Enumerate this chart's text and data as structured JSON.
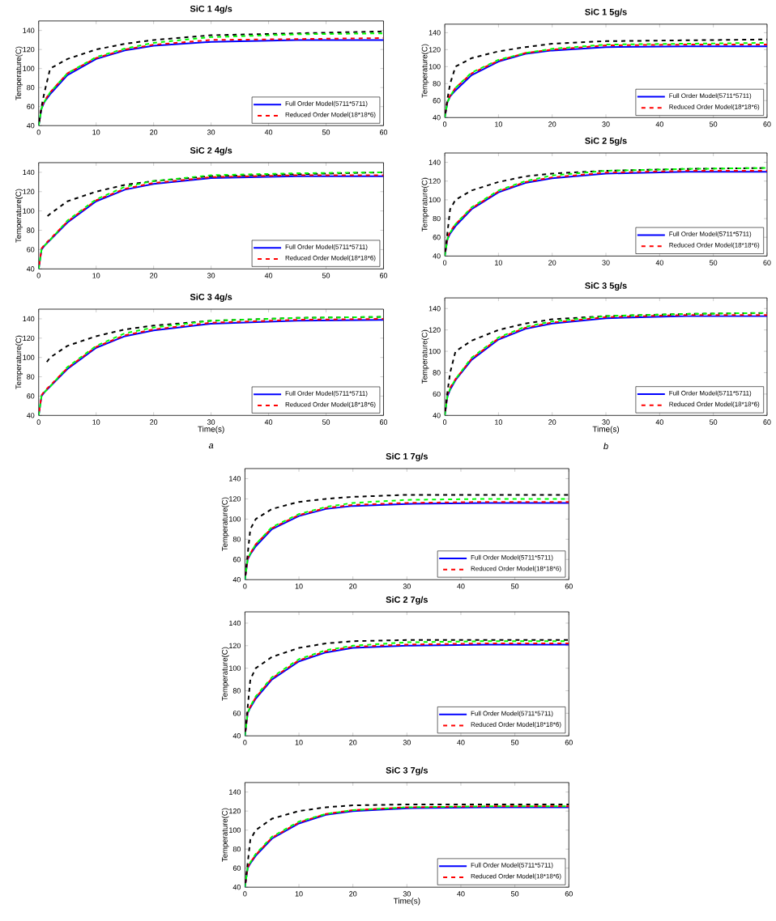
{
  "chart_data": [
    {
      "type": "line",
      "title": "SiC 1 4g/s",
      "ylabel": "Temperature(C)",
      "x": [
        0,
        0.5,
        1,
        2,
        5,
        10,
        15,
        20,
        30,
        45,
        60
      ],
      "xlim": [
        0,
        60
      ],
      "ylim": [
        40,
        150
      ],
      "xticks": [
        0,
        10,
        20,
        30,
        40,
        50,
        60
      ],
      "yticks": [
        40,
        60,
        80,
        100,
        120,
        140
      ],
      "legend": "bottom right",
      "series": [
        {
          "color": "#00ff00",
          "line_style": "dashed",
          "values": [
            40,
            58,
            65,
            75,
            95,
            112,
            121,
            127,
            133,
            136,
            137
          ]
        },
        {
          "color": "#000000",
          "line_style": "dashed",
          "values": [
            40,
            60,
            75,
            100,
            110,
            120,
            126,
            130,
            135,
            137,
            139
          ]
        },
        {
          "name": "Full Order Model(5711*5711)",
          "color": "#0000ff",
          "line_style": "solid",
          "values": [
            40,
            58,
            65,
            73,
            93,
            110,
            119,
            124,
            128,
            130,
            130
          ]
        },
        {
          "name": "Reduced Order Model(18*18*6)",
          "color": "#ff0000",
          "line_style": "dashed",
          "values": [
            40,
            60,
            66,
            75,
            95,
            111,
            120,
            125,
            130,
            131,
            132
          ]
        }
      ]
    },
    {
      "type": "line",
      "title": "SiC 1 5g/s",
      "ylabel": "Temperature(C)",
      "x": [
        0,
        0.5,
        1,
        2,
        5,
        10,
        15,
        20,
        30,
        45,
        60
      ],
      "xlim": [
        0,
        60
      ],
      "ylim": [
        40,
        150
      ],
      "xticks": [
        0,
        10,
        20,
        30,
        40,
        50,
        60
      ],
      "yticks": [
        40,
        60,
        80,
        100,
        120,
        140
      ],
      "legend": "bottom right",
      "series": [
        {
          "color": "#00ff00",
          "line_style": "dashed",
          "values": [
            40,
            58,
            65,
            75,
            93,
            108,
            116,
            121,
            126,
            127,
            128
          ]
        },
        {
          "color": "#000000",
          "line_style": "dashed",
          "values": [
            40,
            62,
            80,
            100,
            110,
            118,
            123,
            127,
            130,
            131,
            132
          ]
        },
        {
          "name": "Full Order Model(5711*5711)",
          "color": "#0000ff",
          "line_style": "solid",
          "values": [
            40,
            58,
            65,
            72,
            90,
            106,
            115,
            119,
            123,
            124,
            124
          ]
        },
        {
          "name": "Reduced Order Model(18*18*6)",
          "color": "#ff0000",
          "line_style": "dashed",
          "values": [
            40,
            60,
            66,
            75,
            92,
            107,
            116,
            120,
            125,
            126,
            126
          ]
        }
      ]
    },
    {
      "type": "line",
      "title": "SiC 2 4g/s",
      "ylabel": "Temperature(C)",
      "x": [
        0,
        0.5,
        1,
        2,
        5,
        10,
        15,
        20,
        30,
        45,
        60
      ],
      "xlim": [
        0,
        60
      ],
      "ylim": [
        40,
        150
      ],
      "xticks": [
        0,
        10,
        20,
        30,
        40,
        50,
        60
      ],
      "yticks": [
        40,
        60,
        80,
        100,
        120,
        140
      ],
      "legend": "bottom right",
      "series": [
        {
          "color": "#00ff00",
          "line_style": "dashed",
          "values": [
            40,
            60,
            64,
            70,
            90,
            112,
            125,
            131,
            137,
            139,
            140
          ]
        },
        {
          "color": "#000000",
          "line_style": "dashed",
          "values": [
            null,
            null,
            92,
            97,
            110,
            120,
            127,
            131,
            136,
            138,
            140
          ]
        },
        {
          "name": "Full Order Model(5711*5711)",
          "color": "#0000ff",
          "line_style": "solid",
          "values": [
            40,
            60,
            64,
            70,
            88,
            110,
            122,
            128,
            134,
            136,
            136
          ]
        },
        {
          "name": "Reduced Order Model(18*18*6)",
          "color": "#ff0000",
          "line_style": "dashed",
          "values": [
            40,
            61,
            65,
            71,
            89,
            111,
            123,
            129,
            135,
            137,
            137
          ]
        }
      ]
    },
    {
      "type": "line",
      "title": "SiC 2 5g/s",
      "ylabel": "Temperature(C)",
      "x": [
        0,
        0.5,
        1,
        2,
        5,
        10,
        15,
        20,
        30,
        45,
        60
      ],
      "xlim": [
        0,
        60
      ],
      "ylim": [
        40,
        150
      ],
      "xticks": [
        0,
        10,
        20,
        30,
        40,
        50,
        60
      ],
      "yticks": [
        40,
        60,
        80,
        100,
        120,
        140
      ],
      "legend": "bottom right",
      "series": [
        {
          "color": "#00ff00",
          "line_style": "dashed",
          "values": [
            40,
            58,
            65,
            74,
            92,
            110,
            120,
            126,
            131,
            133,
            134
          ]
        },
        {
          "color": "#000000",
          "line_style": "dashed",
          "values": [
            40,
            65,
            90,
            100,
            110,
            119,
            125,
            128,
            131,
            133,
            134
          ]
        },
        {
          "name": "Full Order Model(5711*5711)",
          "color": "#0000ff",
          "line_style": "solid",
          "values": [
            40,
            58,
            64,
            72,
            90,
            108,
            118,
            123,
            128,
            130,
            130
          ]
        },
        {
          "name": "Reduced Order Model(18*18*6)",
          "color": "#ff0000",
          "line_style": "dashed",
          "values": [
            40,
            60,
            66,
            74,
            91,
            109,
            119,
            124,
            129,
            131,
            131
          ]
        }
      ]
    },
    {
      "type": "line",
      "title": "SiC 3 4g/s",
      "xlabel": "Time(s)",
      "ylabel": "Temperature(C)",
      "annotations": [
        "a"
      ],
      "x": [
        0,
        0.5,
        1,
        2,
        5,
        10,
        15,
        20,
        30,
        45,
        60
      ],
      "xlim": [
        0,
        60
      ],
      "ylim": [
        40,
        150
      ],
      "xticks": [
        0,
        10,
        20,
        30,
        40,
        50,
        60
      ],
      "yticks": [
        40,
        60,
        80,
        100,
        120,
        140
      ],
      "legend": "bottom right",
      "series": [
        {
          "color": "#00ff00",
          "line_style": "dashed",
          "values": [
            40,
            60,
            64,
            70,
            90,
            112,
            125,
            131,
            138,
            141,
            142
          ]
        },
        {
          "color": "#000000",
          "line_style": "dashed",
          "values": [
            null,
            null,
            92,
            100,
            112,
            122,
            129,
            133,
            138,
            141,
            142
          ]
        },
        {
          "name": "Full Order Model(5711*5711)",
          "color": "#0000ff",
          "line_style": "solid",
          "values": [
            40,
            60,
            64,
            70,
            88,
            110,
            122,
            128,
            135,
            138,
            139
          ]
        },
        {
          "name": "Reduced Order Model(18*18*6)",
          "color": "#ff0000",
          "line_style": "dashed",
          "values": [
            40,
            61,
            65,
            71,
            89,
            111,
            123,
            129,
            136,
            139,
            140
          ]
        }
      ]
    },
    {
      "type": "line",
      "title": "SiC 3 5g/s",
      "xlabel": "Time(s)",
      "ylabel": "Temperature(C)",
      "annotations": [
        "b"
      ],
      "x": [
        0,
        0.5,
        1,
        2,
        5,
        10,
        15,
        20,
        30,
        45,
        60
      ],
      "xlim": [
        0,
        60
      ],
      "ylim": [
        40,
        150
      ],
      "xticks": [
        0,
        10,
        20,
        30,
        40,
        50,
        60
      ],
      "yticks": [
        40,
        60,
        80,
        100,
        120,
        140
      ],
      "legend": "bottom right",
      "series": [
        {
          "color": "#00ff00",
          "line_style": "dashed",
          "values": [
            40,
            58,
            65,
            74,
            94,
            113,
            123,
            128,
            133,
            135,
            136
          ]
        },
        {
          "color": "#000000",
          "line_style": "dashed",
          "values": [
            40,
            62,
            80,
            100,
            110,
            120,
            126,
            130,
            133,
            135,
            136
          ]
        },
        {
          "name": "Full Order Model(5711*5711)",
          "color": "#0000ff",
          "line_style": "solid",
          "values": [
            40,
            58,
            64,
            73,
            92,
            111,
            121,
            126,
            131,
            133,
            133
          ]
        },
        {
          "name": "Reduced Order Model(18*18*6)",
          "color": "#ff0000",
          "line_style": "dashed",
          "values": [
            40,
            60,
            66,
            74,
            93,
            112,
            122,
            127,
            132,
            134,
            134
          ]
        }
      ]
    },
    {
      "type": "line",
      "title": "SiC 1 7g/s",
      "ylabel": "Temperature(C)",
      "x": [
        0,
        0.5,
        1,
        2,
        5,
        10,
        15,
        20,
        30,
        45,
        60
      ],
      "xlim": [
        0,
        60
      ],
      "ylim": [
        40,
        150
      ],
      "xticks": [
        0,
        10,
        20,
        30,
        40,
        50,
        60
      ],
      "yticks": [
        40,
        60,
        80,
        100,
        120,
        140
      ],
      "legend": "bottom right",
      "series": [
        {
          "color": "#00ff00",
          "line_style": "dashed",
          "values": [
            40,
            60,
            66,
            75,
            92,
            105,
            112,
            116,
            119,
            120,
            120
          ]
        },
        {
          "color": "#000000",
          "line_style": "dashed",
          "values": [
            40,
            65,
            90,
            100,
            110,
            117,
            120,
            122,
            124,
            124,
            124
          ]
        },
        {
          "name": "Full Order Model(5711*5711)",
          "color": "#0000ff",
          "line_style": "solid",
          "values": [
            40,
            60,
            65,
            73,
            90,
            103,
            110,
            113,
            115,
            116,
            116
          ]
        },
        {
          "name": "Reduced Order Model(18*18*6)",
          "color": "#ff0000",
          "line_style": "dashed",
          "values": [
            40,
            61,
            66,
            75,
            91,
            104,
            111,
            114,
            116,
            117,
            117
          ]
        }
      ]
    },
    {
      "type": "line",
      "title": "SiC 2 7g/s",
      "ylabel": "Temperature(C)",
      "x": [
        0,
        0.5,
        1,
        2,
        5,
        10,
        15,
        20,
        30,
        45,
        60
      ],
      "xlim": [
        0,
        60
      ],
      "ylim": [
        40,
        150
      ],
      "xticks": [
        0,
        10,
        20,
        30,
        40,
        50,
        60
      ],
      "yticks": [
        40,
        60,
        80,
        100,
        120,
        140
      ],
      "legend": "bottom right",
      "series": [
        {
          "color": "#00ff00",
          "line_style": "dashed",
          "values": [
            40,
            60,
            66,
            75,
            92,
            108,
            116,
            120,
            123,
            124,
            124
          ]
        },
        {
          "color": "#000000",
          "line_style": "dashed",
          "values": [
            40,
            65,
            90,
            100,
            110,
            118,
            122,
            124,
            125,
            125,
            125
          ]
        },
        {
          "name": "Full Order Model(5711*5711)",
          "color": "#0000ff",
          "line_style": "solid",
          "values": [
            40,
            60,
            65,
            73,
            90,
            106,
            114,
            118,
            120,
            121,
            121
          ]
        },
        {
          "name": "Reduced Order Model(18*18*6)",
          "color": "#ff0000",
          "line_style": "dashed",
          "values": [
            40,
            61,
            66,
            74,
            91,
            107,
            115,
            119,
            121,
            122,
            122
          ]
        }
      ]
    },
    {
      "type": "line",
      "title": "SiC 3 7g/s",
      "xlabel": "Time(s)",
      "ylabel": "Temperature(C)",
      "x": [
        0,
        0.5,
        1,
        2,
        5,
        10,
        15,
        20,
        30,
        45,
        60
      ],
      "xlim": [
        0,
        60
      ],
      "ylim": [
        40,
        150
      ],
      "xticks": [
        0,
        10,
        20,
        30,
        40,
        50,
        60
      ],
      "yticks": [
        40,
        60,
        80,
        100,
        120,
        140
      ],
      "legend": "bottom right",
      "series": [
        {
          "color": "#00ff00",
          "line_style": "dashed",
          "values": [
            40,
            60,
            66,
            75,
            93,
            109,
            117,
            121,
            124,
            125,
            125
          ]
        },
        {
          "color": "#000000",
          "line_style": "dashed",
          "values": [
            40,
            65,
            90,
            100,
            112,
            120,
            124,
            126,
            127,
            127,
            127
          ]
        },
        {
          "name": "Full Order Model(5711*5711)",
          "color": "#0000ff",
          "line_style": "solid",
          "values": [
            40,
            60,
            65,
            73,
            91,
            107,
            116,
            120,
            123,
            124,
            124
          ]
        },
        {
          "name": "Reduced Order Model(18*18*6)",
          "color": "#ff0000",
          "line_style": "dashed",
          "values": [
            40,
            61,
            66,
            74,
            92,
            108,
            117,
            121,
            124,
            125,
            125
          ]
        }
      ]
    }
  ]
}
